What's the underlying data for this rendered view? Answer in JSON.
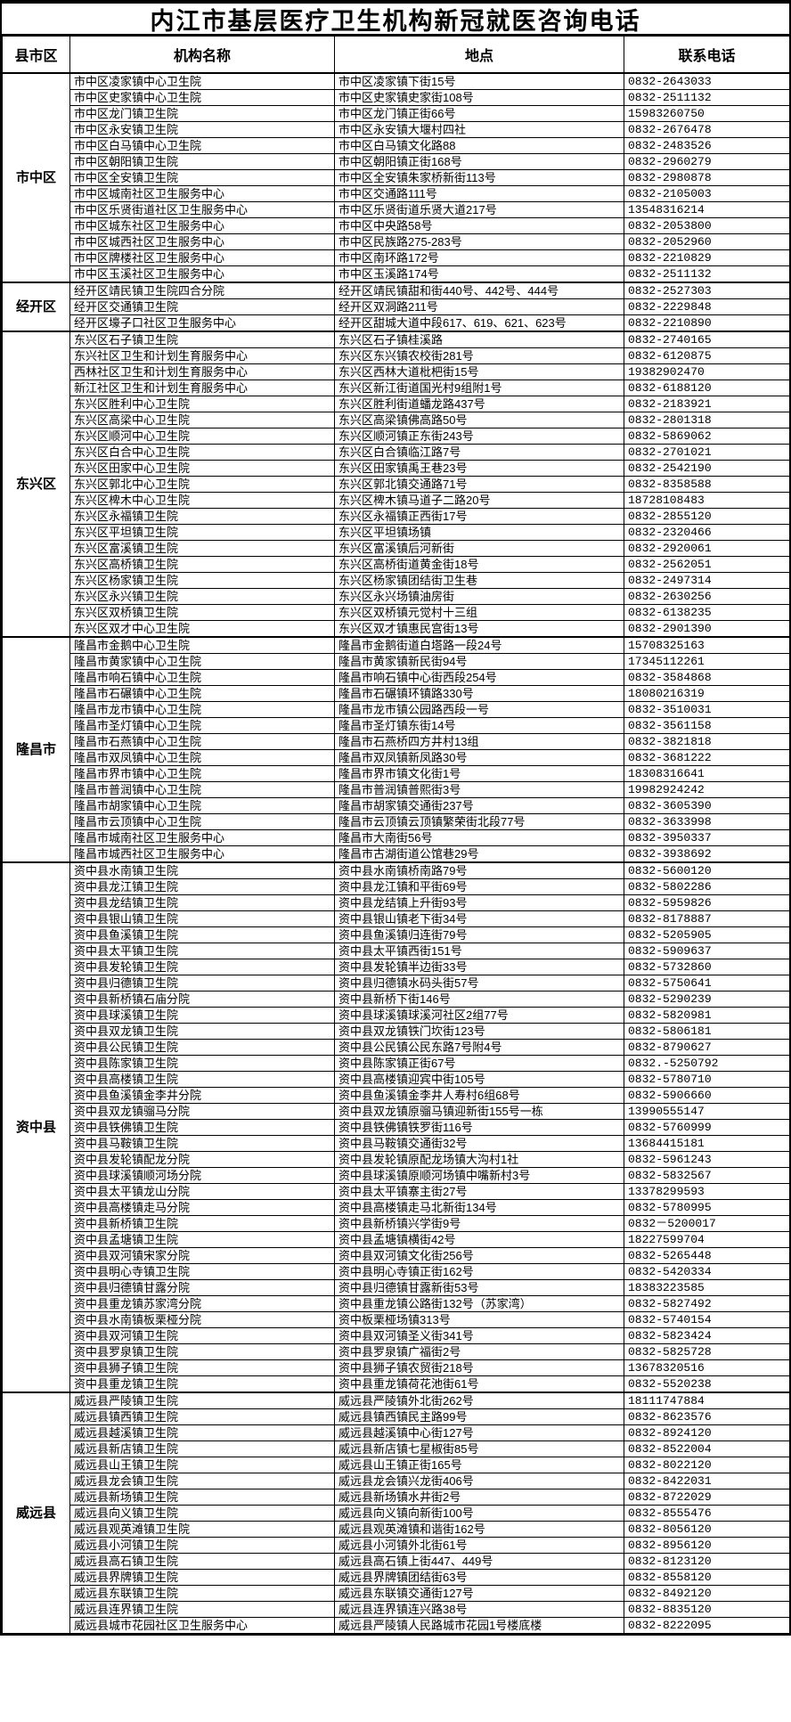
{
  "title": "内江市基层医疗卫生机构新冠就医咨询电话",
  "columns": [
    "县市区",
    "机构名称",
    "地点",
    "联系电话"
  ],
  "sections": [
    {
      "district": "市中区",
      "rows": [
        [
          "市中区凌家镇中心卫生院",
          "市中区凌家镇下街15号",
          "0832-2643033"
        ],
        [
          "市中区史家镇中心卫生院",
          "市中区史家镇史家街108号",
          "0832-2511132"
        ],
        [
          "市中区龙门镇卫生院",
          "市中区龙门镇正街66号",
          "15983260750"
        ],
        [
          "市中区永安镇卫生院",
          "市中区永安镇大堰村四社",
          "0832-2676478"
        ],
        [
          "市中区白马镇中心卫生院",
          "市中区白马镇文化路88",
          "0832-2483526"
        ],
        [
          "市中区朝阳镇卫生院",
          "市中区朝阳镇正街168号",
          "0832-2960279"
        ],
        [
          "市中区全安镇卫生院",
          "市中区全安镇朱家桥新街113号",
          "0832-2980878"
        ],
        [
          "市中区城南社区卫生服务中心",
          "市中区交通路111号",
          "0832-2105003"
        ],
        [
          "市中区乐贤街道社区卫生服务中心",
          "市中区乐贤街道乐贤大道217号",
          "13548316214"
        ],
        [
          "市中区城东社区卫生服务中心",
          "市中区中央路58号",
          "0832-2053800"
        ],
        [
          "市中区城西社区卫生服务中心",
          "市中区民族路275-283号",
          "0832-2052960"
        ],
        [
          "市中区牌楼社区卫生服务中心",
          "市中区南环路172号",
          "0832-2210829"
        ],
        [
          "市中区玉溪社区卫生服务中心",
          "市中区玉溪路174号",
          "0832-2511132"
        ]
      ]
    },
    {
      "district": "经开区",
      "rows": [
        [
          "经开区靖民镇卫生院四合分院",
          "经开区靖民镇甜和街440号、442号、444号",
          "0832-2527303"
        ],
        [
          "经开区交通镇卫生院",
          "经开区双洞路211号",
          "0832-2229848"
        ],
        [
          "经开区壕子口社区卫生服务中心",
          "经开区甜城大道中段617、619、621、623号",
          "0832-2210890"
        ]
      ]
    },
    {
      "district": "东兴区",
      "rows": [
        [
          "东兴区石子镇卫生院",
          "东兴区石子镇桂溪路",
          "0832-2740165"
        ],
        [
          "东兴社区卫生和计划生育服务中心",
          "东兴区东兴镇农校街281号",
          "0832-6120875"
        ],
        [
          "西林社区卫生和计划生育服务中心",
          "东兴区西林大道枇杷街15号",
          "19382902470"
        ],
        [
          "新江社区卫生和计划生育服务中心",
          "东兴区新江街道国光村9组附1号",
          "0832-6188120"
        ],
        [
          "东兴区胜利中心卫生院",
          "东兴区胜利街道蟠龙路437号",
          "0832-2183921"
        ],
        [
          "东兴区高梁中心卫生院",
          "东兴区高梁镇佛高路50号",
          "0832-2801318"
        ],
        [
          "东兴区顺河中心卫生院",
          "东兴区顺河镇正东街243号",
          "0832-5869062"
        ],
        [
          "东兴区白合中心卫生院",
          "东兴区白合镇临江路7号",
          "0832-2701021"
        ],
        [
          "东兴区田家中心卫生院",
          "东兴区田家镇禹王巷23号",
          "0832-2542190"
        ],
        [
          "东兴区郭北中心卫生院",
          "东兴区郭北镇交通路71号",
          "0832-8358588"
        ],
        [
          "东兴区椑木中心卫生院",
          "东兴区椑木镇马道子二路20号",
          "18728108483"
        ],
        [
          "东兴区永福镇卫生院",
          "东兴区永福镇正西街17号",
          "0832-2855120"
        ],
        [
          "东兴区平坦镇卫生院",
          "东兴区平坦镇场镇",
          "0832-2320466"
        ],
        [
          "东兴区富溪镇卫生院",
          "东兴区富溪镇后河新街",
          "0832-2920061"
        ],
        [
          "东兴区高桥镇卫生院",
          "东兴区高桥街道黄金街18号",
          "0832-2562051"
        ],
        [
          "东兴区杨家镇卫生院",
          "东兴区杨家镇团结街卫生巷",
          "0832-2497314"
        ],
        [
          "东兴区永兴镇卫生院",
          "东兴区永兴场镇油房街",
          "0832-2630256"
        ],
        [
          "东兴区双桥镇卫生院",
          "东兴区双桥镇元觉村十三组",
          "0832-6138235"
        ],
        [
          "东兴区双才中心卫生院",
          "东兴区双才镇惠民宫街13号",
          "0832-2901390"
        ]
      ]
    },
    {
      "district": "隆昌市",
      "rows": [
        [
          "隆昌市金鹅中心卫生院",
          "隆昌市金鹅街道白塔路一段24号",
          "15708325163"
        ],
        [
          "隆昌市黄家镇中心卫生院",
          "隆昌市黄家镇新民街94号",
          "17345112261"
        ],
        [
          "隆昌市响石镇中心卫生院",
          "隆昌市响石镇中心街西段254号",
          "0832-3584868"
        ],
        [
          "隆昌市石碾镇中心卫生院",
          "隆昌市石碾镇环镇路330号",
          "18080216319"
        ],
        [
          "隆昌市龙市镇中心卫生院",
          "隆昌市龙市镇公园路西段一号",
          "0832-3510031"
        ],
        [
          "隆昌市圣灯镇中心卫生院",
          "隆昌市圣灯镇东街14号",
          "0832-3561158"
        ],
        [
          "隆昌市石燕镇中心卫生院",
          "隆昌市石燕桥四方井村13组",
          "0832-3821818"
        ],
        [
          "隆昌市双凤镇中心卫生院",
          "隆昌市双凤镇新凤路30号",
          "0832-3681222"
        ],
        [
          "隆昌市界市镇中心卫生院",
          "隆昌市界市镇文化街1号",
          "18308316641"
        ],
        [
          "隆昌市普润镇中心卫生院",
          "隆昌市普润镇普熙街3号",
          "19982924242"
        ],
        [
          "隆昌市胡家镇中心卫生院",
          "隆昌市胡家镇交通街237号",
          "0832-3605390"
        ],
        [
          "隆昌市云顶镇中心卫生院",
          "隆昌市云顶镇云顶镇繁荣街北段77号",
          "0832-3633998"
        ],
        [
          "隆昌市城南社区卫生服务中心",
          "隆昌市大南街56号",
          "0832-3950337"
        ],
        [
          "隆昌市城西社区卫生服务中心",
          "隆昌市古湖街道公馆巷29号",
          "0832-3938692"
        ]
      ]
    },
    {
      "district": "资中县",
      "rows": [
        [
          "资中县水南镇卫生院",
          "资中县水南镇桥南路79号",
          "0832-5600120"
        ],
        [
          "资中县龙江镇卫生院",
          "资中县龙江镇和平街69号",
          "0832-5802286"
        ],
        [
          "资中县龙结镇卫生院",
          "资中县龙结镇上升街93号",
          "0832-5959826"
        ],
        [
          "资中县银山镇卫生院",
          "资中县银山镇老下街34号",
          "0832-8178887"
        ],
        [
          "资中县鱼溪镇卫生院",
          "资中县鱼溪镇归连街79号",
          "0832-5205905"
        ],
        [
          "资中县太平镇卫生院",
          "资中县太平镇西街151号",
          "0832-5909637"
        ],
        [
          "资中县发轮镇卫生院",
          "资中县发轮镇半边街33号",
          "0832-5732860"
        ],
        [
          "资中县归德镇卫生院",
          "资中县归德镇水码头街57号",
          "0832-5750641"
        ],
        [
          "资中县新桥镇石庙分院",
          "资中县新桥下街146号",
          "0832-5290239"
        ],
        [
          "资中县球溪镇卫生院",
          "资中县球溪镇球溪河社区2组77号",
          "0832-5820981"
        ],
        [
          "资中县双龙镇卫生院",
          "资中县双龙镇铁门坎街123号",
          "0832-5806181"
        ],
        [
          "资中县公民镇卫生院",
          "资中县公民镇公民东路7号附4号",
          "0832-8790627"
        ],
        [
          "资中县陈家镇卫生院",
          "资中县陈家镇正街67号",
          "0832.-5250792"
        ],
        [
          "资中县高楼镇卫生院",
          "资中县高楼镇迎宾中街105号",
          "0832-5780710"
        ],
        [
          "资中县鱼溪镇金李井分院",
          "资中县鱼溪镇金李井人寿村6组68号",
          "0832-5906660"
        ],
        [
          "资中县双龙镇骝马分院",
          "资中县双龙镇原骝马镇迎新街155号一栋",
          "13990555147"
        ],
        [
          "资中县铁佛镇卫生院",
          "资中县铁佛镇铁罗街116号",
          "0832-5760999"
        ],
        [
          "资中县马鞍镇卫生院",
          "资中县马鞍镇交通街32号",
          "13684415181"
        ],
        [
          "资中县发轮镇配龙分院",
          "资中县发轮镇原配龙场镇大沟村1社",
          "0832-5961243"
        ],
        [
          "资中县球溪镇顺河场分院",
          "资中县球溪镇原顺河场镇中嘴新村3号",
          "0832-5832567"
        ],
        [
          "资中县太平镇龙山分院",
          "资中县太平镇寨主街27号",
          "13378299593"
        ],
        [
          "资中县高楼镇走马分院",
          "资中县高楼镇走马北新街134号",
          "0832-5780995"
        ],
        [
          "资中县新桥镇卫生院",
          "资中县新桥镇兴学街9号",
          "0832－5200017"
        ],
        [
          "资中县孟塘镇卫生院",
          "资中县孟塘镇横街42号",
          "18227599704"
        ],
        [
          "资中县双河镇宋家分院",
          "资中县双河镇文化街256号",
          "0832-5265448"
        ],
        [
          "资中县明心寺镇卫生院",
          "资中县明心寺镇正街162号",
          "0832-5420334"
        ],
        [
          "资中县归德镇甘露分院",
          "资中县归德镇甘露新街53号",
          "18383223585"
        ],
        [
          "资中县重龙镇苏家湾分院",
          "资中县重龙镇公路街132号（苏家湾）",
          "0832-5827492"
        ],
        [
          "资中县水南镇板栗桠分院",
          "资中板栗桠场镇313号",
          "0832-5740154"
        ],
        [
          "资中县双河镇卫生院",
          "资中县双河镇圣义街341号",
          "0832-5823424"
        ],
        [
          "资中县罗泉镇卫生院",
          "资中县罗泉镇广福街2号",
          "0832-5825728"
        ],
        [
          "资中县狮子镇卫生院",
          "资中县狮子镇农贸街218号",
          "13678320516"
        ],
        [
          "资中县重龙镇卫生院",
          "资中县重龙镇荷花池街61号",
          "0832-5520238"
        ]
      ]
    },
    {
      "district": "威远县",
      "rows": [
        [
          "威远县严陵镇卫生院",
          "威远县严陵镇外北街262号",
          "18111747884"
        ],
        [
          "威远县镇西镇卫生院",
          "威远县镇西镇民主路99号",
          "0832-8623576"
        ],
        [
          "威远县越溪镇卫生院",
          "威远县越溪镇中心街127号",
          "0832-8924120"
        ],
        [
          "威远县新店镇卫生院",
          "威远县新店镇七星椒街85号",
          "0832-8522004"
        ],
        [
          "威远县山王镇卫生院",
          "威远县山王镇正街165号",
          "0832-8022120"
        ],
        [
          "威远县龙会镇卫生院",
          "威远县龙会镇兴龙街406号",
          "0832-8422031"
        ],
        [
          "威远县新场镇卫生院",
          "威远县新场镇水井街2号",
          "0832-8722029"
        ],
        [
          "威远县向义镇卫生院",
          "威远县向义镇向新街100号",
          "0832-8555476"
        ],
        [
          "威远县观英滩镇卫生院",
          "威远县观英滩镇和谐街162号",
          "0832-8056120"
        ],
        [
          "威远县小河镇卫生院",
          "威远县小河镇外北街61号",
          "0832-8956120"
        ],
        [
          "威远县高石镇卫生院",
          "威远县高石镇上街447、449号",
          "0832-8123120"
        ],
        [
          "威远县界牌镇卫生院",
          "威远县界牌镇团结街63号",
          "0832-8558120"
        ],
        [
          "威远县东联镇卫生院",
          "威远县东联镇交通街127号",
          "0832-8492120"
        ],
        [
          "威远县连界镇卫生院",
          "威远县连界镇连兴路38号",
          "0832-8835120"
        ],
        [
          "威远县城市花园社区卫生服务中心",
          "威远县严陵镇人民路城市花园1号楼底楼",
          "0832-8222095"
        ]
      ]
    }
  ]
}
